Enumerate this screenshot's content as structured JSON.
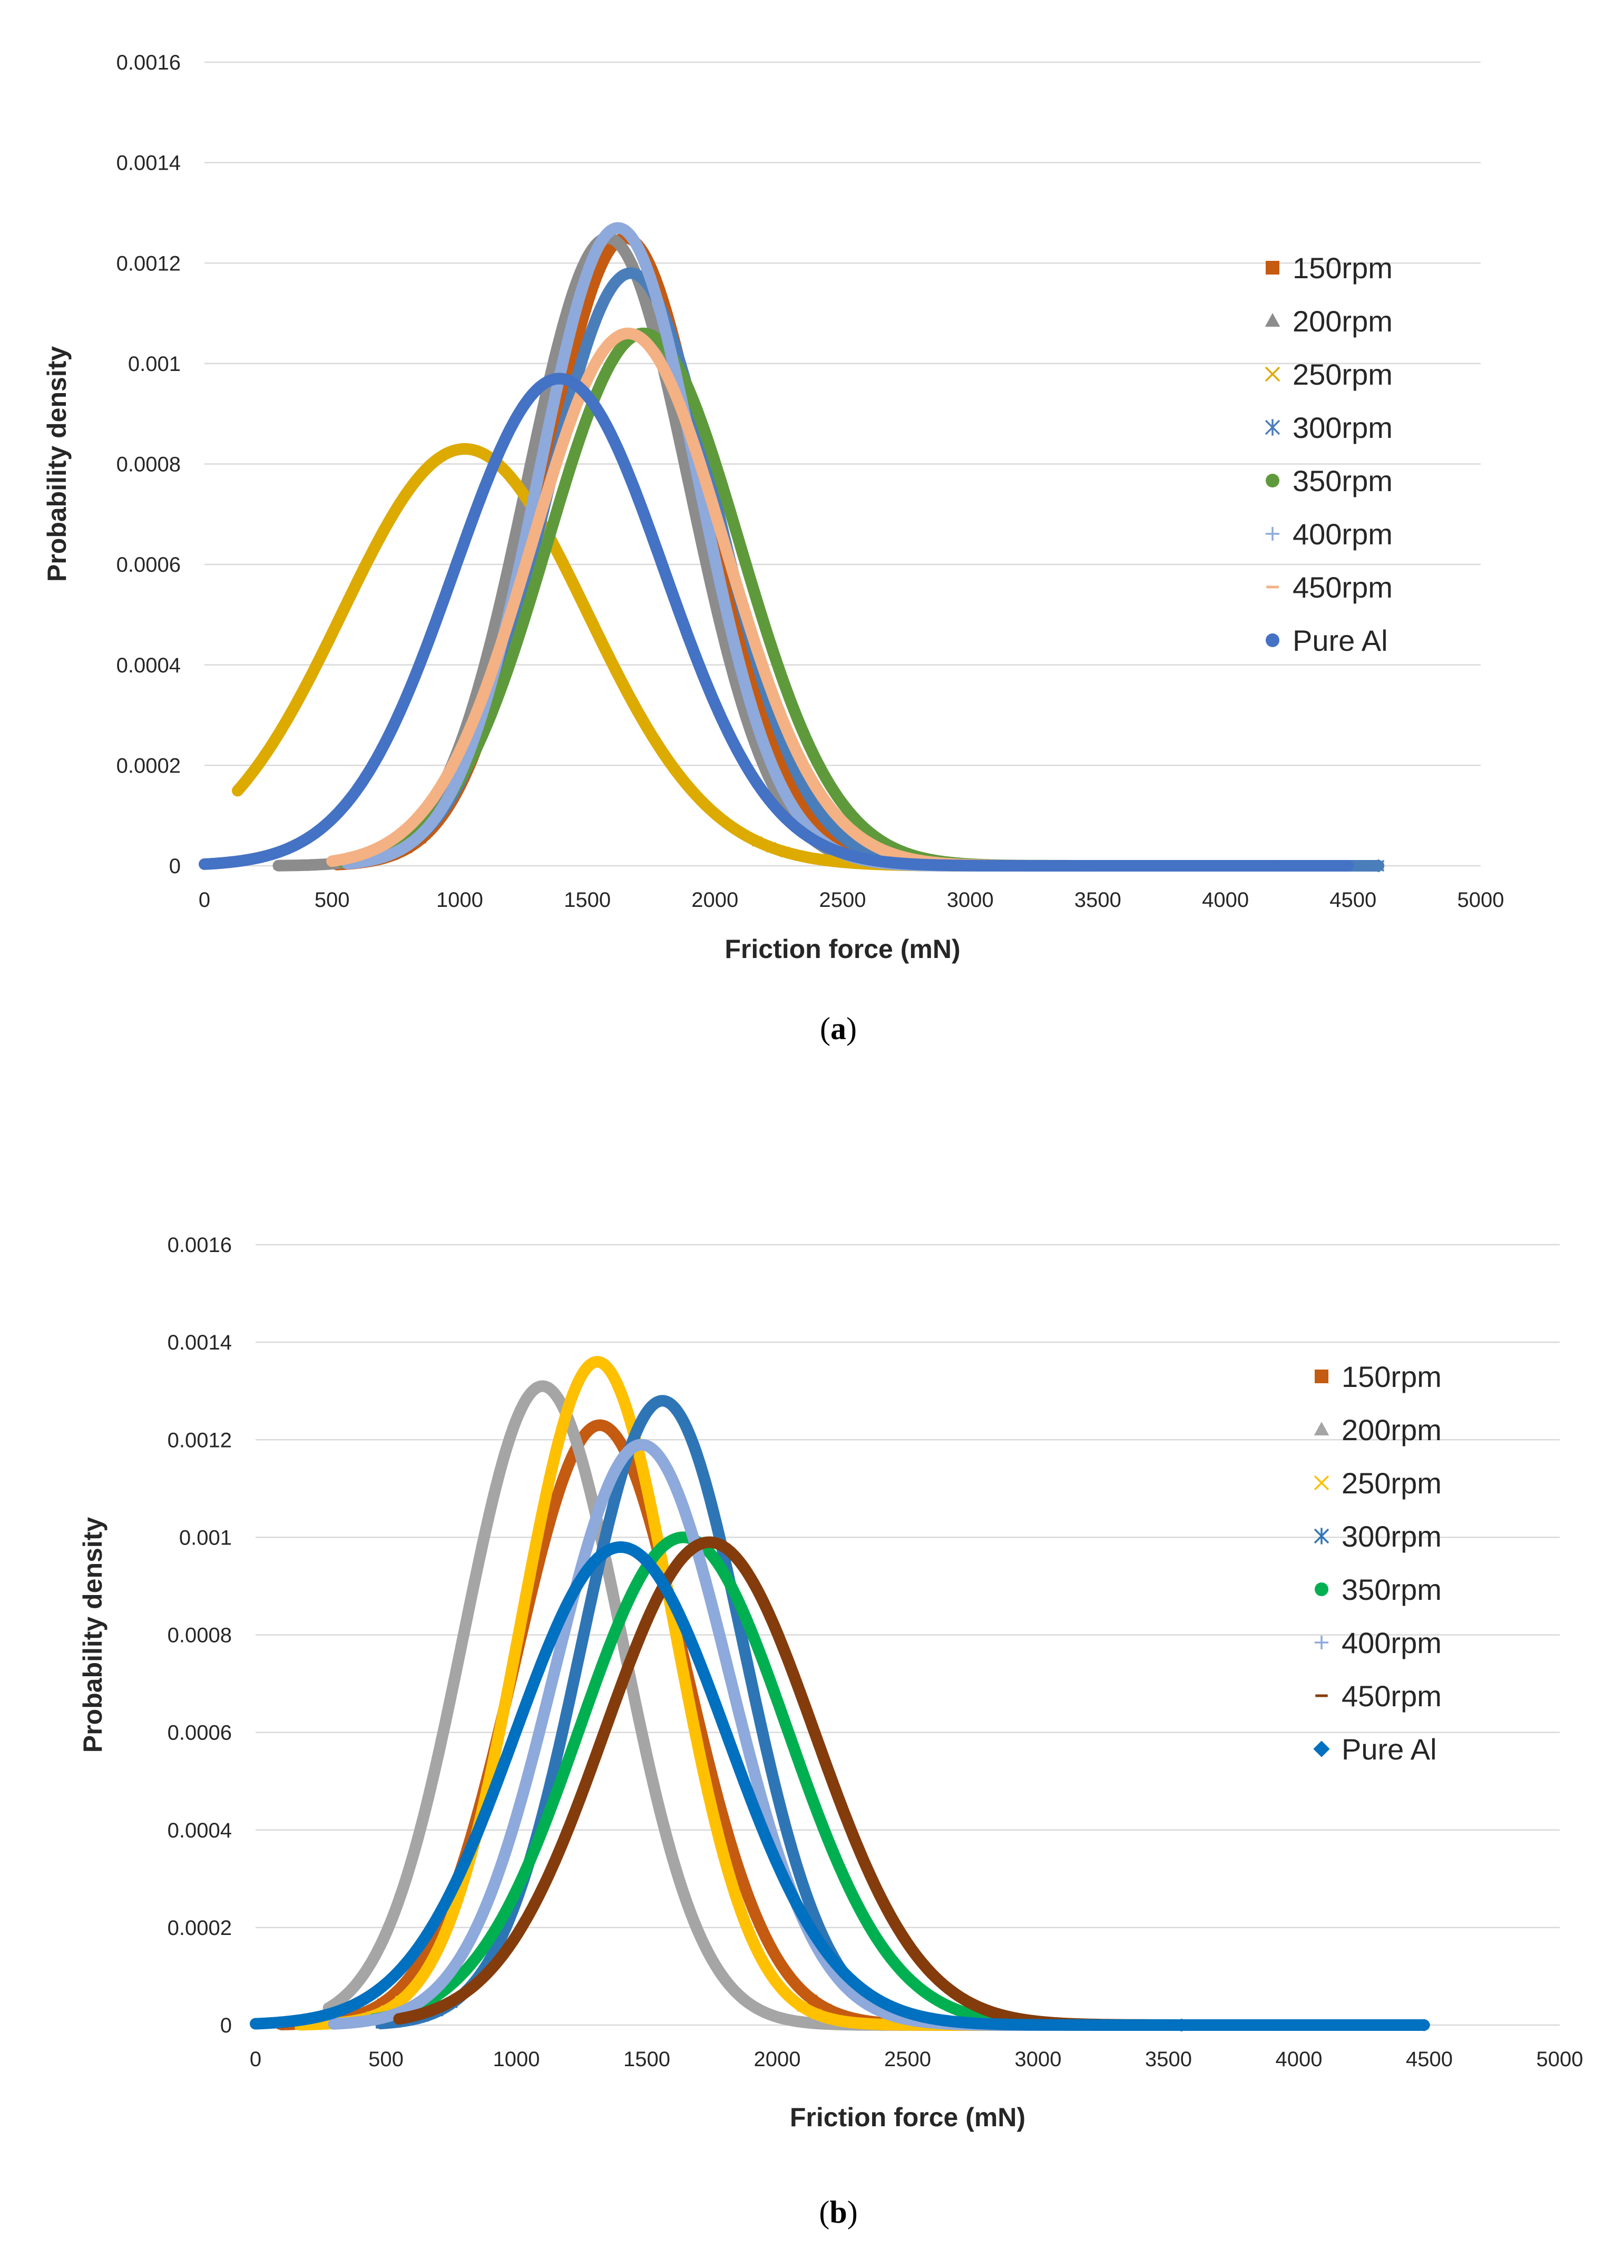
{
  "chart_data": [
    {
      "type": "line",
      "panel": "a",
      "caption_letter": "a",
      "xlabel": "Friction force (mN)",
      "ylabel": "Probability density",
      "xlim": [
        0,
        5000
      ],
      "ylim": [
        0,
        0.0016
      ],
      "x_ticks": [
        0,
        500,
        1000,
        1500,
        2000,
        2500,
        3000,
        3500,
        4000,
        4500,
        5000
      ],
      "y_ticks": [
        0,
        0.0002,
        0.0004,
        0.0006,
        0.0008,
        0.001,
        0.0012,
        0.0014,
        0.0016
      ],
      "x_tick_labels": [
        "0",
        "500",
        "1000",
        "1500",
        "2000",
        "2500",
        "3000",
        "3500",
        "4000",
        "4500",
        "5000"
      ],
      "y_tick_labels": [
        "0",
        "0.0002",
        "0.0004",
        "0.0006",
        "0.0008",
        "0.001",
        "0.0012",
        "0.0014",
        "0.0016"
      ],
      "grid": "horizontal",
      "legend_position": "right",
      "series": [
        {
          "name": "150rpm",
          "marker": "square",
          "color": "#C55A11",
          "mean": 1650,
          "peak": 0.00125,
          "data_min": 520,
          "data_max": 3750
        },
        {
          "name": "200rpm",
          "marker": "triangle",
          "color": "#8C8C8C",
          "mean": 1580,
          "peak": 0.00125,
          "data_min": 290,
          "data_max": 3600
        },
        {
          "name": "250rpm",
          "marker": "x",
          "color": "#DDAA00",
          "mean": 1020,
          "peak": 0.00083,
          "data_min": 130,
          "data_max": 3450
        },
        {
          "name": "300rpm",
          "marker": "asterisk",
          "color": "#4A7EBB",
          "mean": 1670,
          "peak": 0.00118,
          "data_min": 600,
          "data_max": 4600
        },
        {
          "name": "350rpm",
          "marker": "circle",
          "color": "#5E9A3B",
          "mean": 1720,
          "peak": 0.00106,
          "data_min": 540,
          "data_max": 4450
        },
        {
          "name": "400rpm",
          "marker": "plus",
          "color": "#8EA9DB",
          "mean": 1620,
          "peak": 0.00127,
          "data_min": 560,
          "data_max": 3700
        },
        {
          "name": "450rpm",
          "marker": "dash",
          "color": "#F4B183",
          "mean": 1660,
          "peak": 0.00106,
          "data_min": 500,
          "data_max": 4450
        },
        {
          "name": "Pure Al",
          "marker": "circle",
          "color": "#4472C4",
          "mean": 1390,
          "peak": 0.00097,
          "data_min": 0,
          "data_max": 4480
        }
      ]
    },
    {
      "type": "line",
      "panel": "b",
      "caption_letter": "b",
      "xlabel": "Friction force (mN)",
      "ylabel": "Probability  density",
      "xlim": [
        0,
        5000
      ],
      "ylim": [
        0,
        0.0016
      ],
      "x_ticks": [
        0,
        500,
        1000,
        1500,
        2000,
        2500,
        3000,
        3500,
        4000,
        4500,
        5000
      ],
      "y_ticks": [
        0,
        0.0002,
        0.0004,
        0.0006,
        0.0008,
        0.001,
        0.0012,
        0.0014,
        0.0016
      ],
      "x_tick_labels": [
        "0",
        "500",
        "1000",
        "1500",
        "2000",
        "2500",
        "3000",
        "3500",
        "4000",
        "4500",
        "5000"
      ],
      "y_tick_labels": [
        "0",
        "0.0002",
        "0.0004",
        "0.0006",
        "0.0008",
        "0.001",
        "0.0012",
        "0.0014",
        "0.0016"
      ],
      "grid": "horizontal",
      "legend_position": "right",
      "series": [
        {
          "name": "150rpm",
          "marker": "square",
          "color": "#C55A11",
          "mean": 1320,
          "peak": 0.00123,
          "data_min": 100,
          "data_max": 3750
        },
        {
          "name": "200rpm",
          "marker": "triangle",
          "color": "#A5A5A5",
          "mean": 1100,
          "peak": 0.00131,
          "data_min": 280,
          "data_max": 4030
        },
        {
          "name": "250rpm",
          "marker": "x",
          "color": "#FFC000",
          "mean": 1310,
          "peak": 0.00136,
          "data_min": 170,
          "data_max": 3500
        },
        {
          "name": "300rpm",
          "marker": "asterisk",
          "color": "#2E75B6",
          "mean": 1560,
          "peak": 0.00128,
          "data_min": 480,
          "data_max": 3550
        },
        {
          "name": "350rpm",
          "marker": "circle",
          "color": "#00B050",
          "mean": 1640,
          "peak": 0.001,
          "data_min": 450,
          "data_max": 3600
        },
        {
          "name": "400rpm",
          "marker": "plus",
          "color": "#8EA9DB",
          "mean": 1480,
          "peak": 0.00119,
          "data_min": 300,
          "data_max": 3300
        },
        {
          "name": "450rpm",
          "marker": "dash",
          "color": "#843C0C",
          "mean": 1740,
          "peak": 0.00099,
          "data_min": 550,
          "data_max": 4200
        },
        {
          "name": "Pure Al",
          "marker": "diamond",
          "color": "#0070C0",
          "mean": 1400,
          "peak": 0.00098,
          "data_min": 0,
          "data_max": 4480
        }
      ]
    }
  ]
}
